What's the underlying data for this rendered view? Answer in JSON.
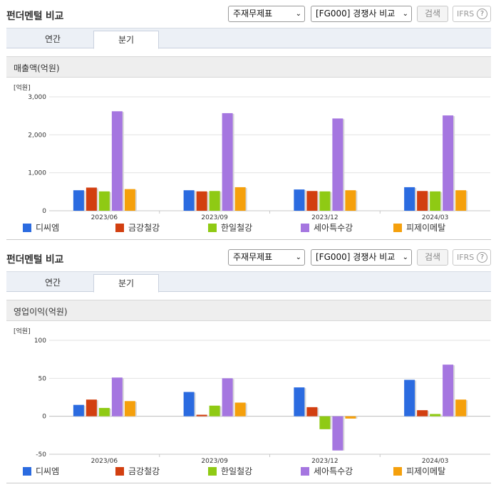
{
  "header": {
    "title": "펀더멘털 비교",
    "statement_select": "주재무제표",
    "compare_select": "[FG000] 경쟁사 비교",
    "search_label": "검색",
    "ifrs_label": "IFRS",
    "help_label": "?"
  },
  "tabs": {
    "annual": "연간",
    "quarter": "분기"
  },
  "legend": [
    "디씨엠",
    "금강철강",
    "한일철강",
    "세아특수강",
    "피제이메탈"
  ],
  "colors": [
    "#2b6be0",
    "#d23f10",
    "#8fca14",
    "#a576e0",
    "#f5a00c"
  ],
  "chart_data": [
    {
      "type": "bar",
      "title": "매출액(억원)",
      "unit": "[억원]",
      "categories": [
        "2023/06",
        "2023/09",
        "2023/12",
        "2024/03"
      ],
      "series": [
        {
          "name": "디씨엠",
          "values": [
            540,
            540,
            560,
            620
          ]
        },
        {
          "name": "금강철강",
          "values": [
            610,
            510,
            520,
            520
          ]
        },
        {
          "name": "한일철강",
          "values": [
            510,
            520,
            510,
            510
          ]
        },
        {
          "name": "세아특수강",
          "values": [
            2620,
            2570,
            2430,
            2510
          ]
        },
        {
          "name": "피제이메탈",
          "values": [
            570,
            620,
            540,
            540
          ]
        }
      ],
      "ylim": [
        0,
        3000
      ],
      "yticks": [
        "0",
        "1,000",
        "2,000",
        "3,000"
      ],
      "ytick_values": [
        0,
        1000,
        2000,
        3000
      ]
    },
    {
      "type": "bar",
      "title": "영업이익(억원)",
      "unit": "[억원]",
      "categories": [
        "2023/06",
        "2023/09",
        "2023/12",
        "2024/03"
      ],
      "series": [
        {
          "name": "디씨엠",
          "values": [
            15,
            32,
            38,
            48
          ]
        },
        {
          "name": "금강철강",
          "values": [
            22,
            2,
            12,
            8
          ]
        },
        {
          "name": "한일철강",
          "values": [
            11,
            14,
            -17,
            3
          ]
        },
        {
          "name": "세아특수강",
          "values": [
            51,
            50,
            -45,
            68
          ]
        },
        {
          "name": "피제이메탈",
          "values": [
            20,
            18,
            -3,
            22
          ]
        }
      ],
      "ylim": [
        -50,
        100
      ],
      "yticks": [
        "-50",
        "0",
        "50",
        "100"
      ],
      "ytick_values": [
        -50,
        0,
        50,
        100
      ]
    }
  ]
}
